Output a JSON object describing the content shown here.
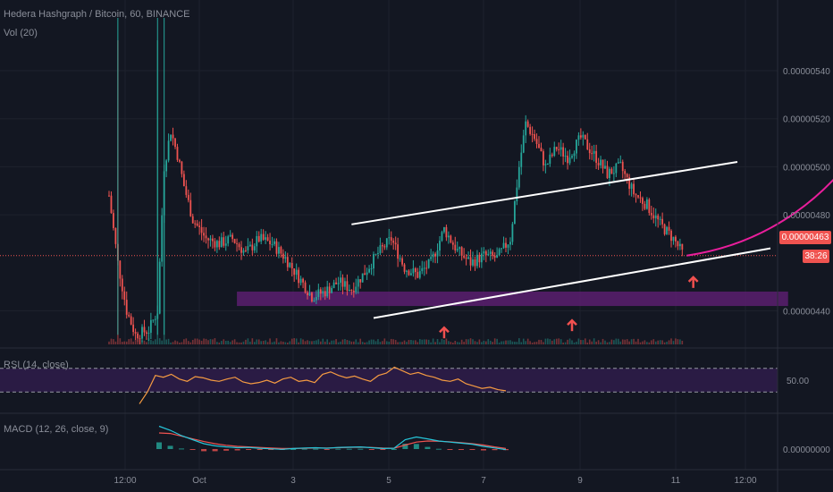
{
  "header": {
    "symbol_title": "Hedera Hashgraph / Bitcoin, 60, BINANCE",
    "vol_label": "Vol (20)",
    "rsi_label": "RSI (14, close)",
    "macd_label": "MACD (12, 26, close, 9)"
  },
  "current_price": "0.00000463",
  "countdown": "38:26",
  "colors": {
    "background": "#131722",
    "up": "#26a69a",
    "down": "#ef5350",
    "trendline": "#ffffff",
    "support_zone": "#5b1e6e",
    "projection_arrow": "#e91e9c",
    "marker_arrow": "#f0504f",
    "rsi_line": "#f59b42",
    "rsi_band": "#2a1b44",
    "macd_line": "#26c6da",
    "signal_line": "#ef5350",
    "price_tag": "#ef5350"
  },
  "chart_data": [
    {
      "type": "candlestick",
      "title": "Hedera Hashgraph / Bitcoin, 60, BINANCE",
      "price_axis_ticks": [
        "0.00000540",
        "0.00000520",
        "0.00000500",
        "0.00000480",
        "0.00000440"
      ],
      "price_axis_values": [
        540,
        520,
        500,
        480,
        440
      ],
      "price_unit_scale": "1e-8 BTC",
      "ylim": [
        426,
        562
      ],
      "time_axis_labels": [
        "12:00",
        "Oct",
        "3",
        "5",
        "7",
        "9",
        "11",
        "12:00"
      ],
      "close_path": [
        [
          0,
          488
        ],
        [
          4,
          460
        ],
        [
          8,
          440
        ],
        [
          12,
          430
        ],
        [
          18,
          432
        ],
        [
          22,
          440
        ],
        [
          25,
          500
        ],
        [
          28,
          515
        ],
        [
          31,
          505
        ],
        [
          34,
          492
        ],
        [
          38,
          478
        ],
        [
          44,
          470
        ],
        [
          50,
          468
        ],
        [
          56,
          470
        ],
        [
          62,
          464
        ],
        [
          68,
          470
        ],
        [
          74,
          468
        ],
        [
          80,
          462
        ],
        [
          86,
          454
        ],
        [
          92,
          446
        ],
        [
          98,
          448
        ],
        [
          104,
          452
        ],
        [
          110,
          449
        ],
        [
          116,
          456
        ],
        [
          122,
          464
        ],
        [
          128,
          470
        ],
        [
          134,
          458
        ],
        [
          140,
          455
        ],
        [
          146,
          460
        ],
        [
          152,
          474
        ],
        [
          158,
          465
        ],
        [
          164,
          460
        ],
        [
          170,
          463
        ],
        [
          176,
          462
        ],
        [
          182,
          470
        ],
        [
          186,
          500
        ],
        [
          189,
          518
        ],
        [
          193,
          512
        ],
        [
          198,
          500
        ],
        [
          203,
          508
        ],
        [
          208,
          504
        ],
        [
          214,
          512
        ],
        [
          220,
          505
        ],
        [
          226,
          497
        ],
        [
          232,
          500
        ],
        [
          238,
          489
        ],
        [
          244,
          484
        ],
        [
          250,
          476
        ],
        [
          256,
          470
        ],
        [
          260,
          464
        ]
      ],
      "volume_spikes": [
        {
          "x": 4,
          "v": 100
        },
        {
          "x": 22,
          "v": 100
        },
        {
          "x": 25,
          "v": 50
        }
      ],
      "annotations": {
        "trend_channel_upper": [
          [
            110,
            476
          ],
          [
            285,
            502
          ]
        ],
        "trend_channel_lower": [
          [
            120,
            437
          ],
          [
            300,
            466
          ]
        ],
        "support_zone": {
          "x_from": 58,
          "x_to": 308,
          "y_from": 442,
          "y_to": 448
        },
        "up_markers": [
          {
            "x": 152,
            "y": 433
          },
          {
            "x": 210,
            "y": 436
          },
          {
            "x": 265,
            "y": 454
          }
        ],
        "projection_curve": [
          [
            262,
            463
          ],
          [
            330,
            472
          ],
          [
            360,
            530
          ],
          [
            365,
            560
          ]
        ]
      }
    },
    {
      "type": "line",
      "title": "RSI (14, close)",
      "tick_labels": [
        "50.00"
      ],
      "ylim": [
        0,
        100
      ],
      "bands": {
        "upper": 70,
        "lower": 30
      },
      "values": [
        10,
        30,
        58,
        55,
        60,
        52,
        48,
        56,
        54,
        50,
        48,
        52,
        55,
        47,
        44,
        46,
        50,
        45,
        52,
        55,
        48,
        50,
        46,
        60,
        64,
        58,
        54,
        57,
        52,
        48,
        58,
        62,
        72,
        66,
        60,
        63,
        58,
        55,
        50,
        48,
        52,
        44,
        40,
        36,
        38,
        34,
        32
      ]
    },
    {
      "type": "line",
      "title": "MACD (12, 26, close, 9)",
      "tick_labels": [
        "0.00000000"
      ],
      "ylim": [
        -1,
        1
      ],
      "macd": [
        0.85,
        0.7,
        0.5,
        0.35,
        0.2,
        0.12,
        0.08,
        0.05,
        0.06,
        0.03,
        0.01,
        -0.01,
        0.02,
        0.04,
        0.05,
        0.03,
        0.06,
        0.07,
        0.08,
        0.05,
        0.02,
        0.03,
        0.35,
        0.45,
        0.38,
        0.3,
        0.26,
        0.22,
        0.18,
        0.1,
        0.04,
        -0.02
      ],
      "signal": [
        0.6,
        0.58,
        0.48,
        0.38,
        0.28,
        0.2,
        0.14,
        0.1,
        0.08,
        0.06,
        0.04,
        0.02,
        0.02,
        0.03,
        0.04,
        0.04,
        0.05,
        0.06,
        0.07,
        0.06,
        0.04,
        0.03,
        0.15,
        0.26,
        0.3,
        0.29,
        0.27,
        0.24,
        0.2,
        0.15,
        0.08,
        0.02
      ]
    }
  ]
}
